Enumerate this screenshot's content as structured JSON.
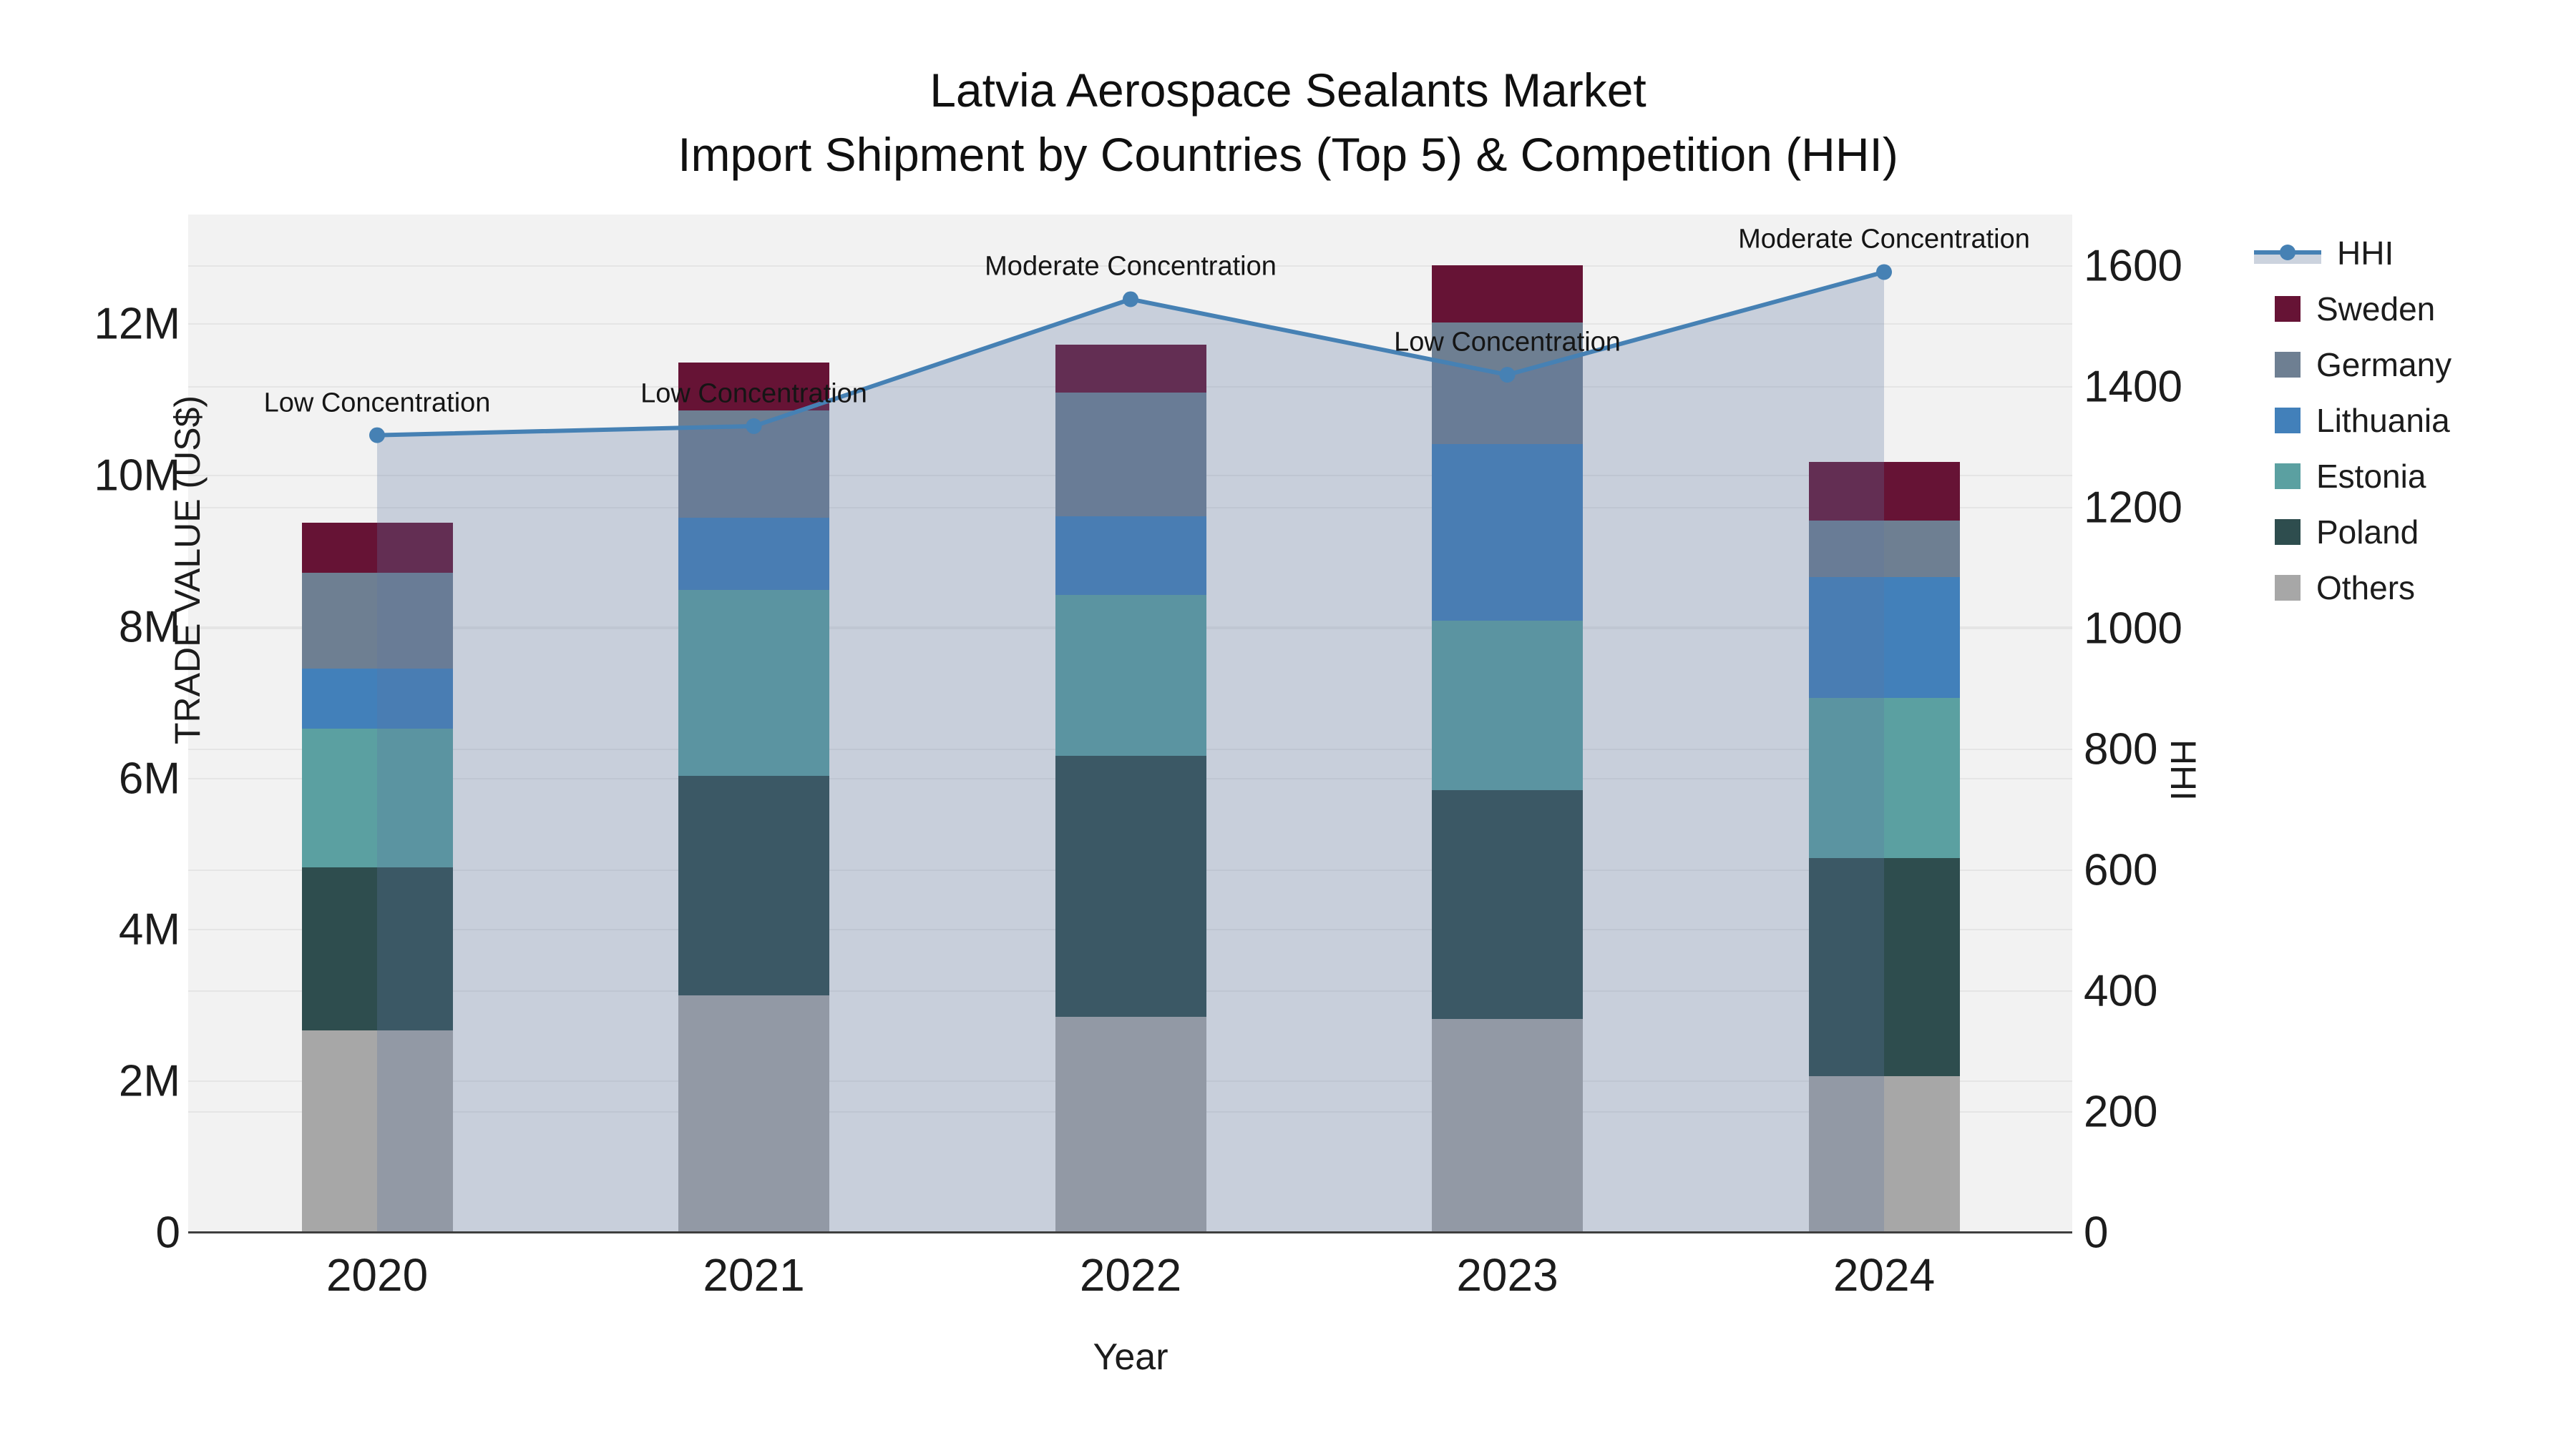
{
  "title": {
    "line1": "Latvia Aerospace Sealants Market",
    "line2": "Import Shipment by Countries (Top 5) & Competition (HHI)"
  },
  "axes": {
    "x": {
      "title": "Year"
    },
    "y_left": {
      "title": "TRADE VALUE (US$)"
    },
    "y_right": {
      "title": "HHI"
    }
  },
  "colors": {
    "plot_background": "#f2f2f2",
    "gridline": "#e5e5e5",
    "axis_line": "#3f3f3f",
    "hhi_line": "#4681b4",
    "hhi_area_fill": "rgba(92,117,160,0.28)",
    "hhi_band_swatch": "#ccd3de"
  },
  "legend_order": [
    "HHI",
    "Sweden",
    "Germany",
    "Lithuania",
    "Estonia",
    "Poland",
    "Others"
  ],
  "chart_data": {
    "type": "combo: stacked-bar (left axis) + line with markers (right axis)",
    "categories": [
      "2020",
      "2021",
      "2022",
      "2023",
      "2024"
    ],
    "bar_unit": "US$ millions",
    "series": [
      {
        "name": "Others",
        "color": "#a7a7a7",
        "values": [
          2.67,
          3.13,
          2.85,
          2.82,
          2.07
        ]
      },
      {
        "name": "Poland",
        "color": "#2e4d4e",
        "values": [
          2.15,
          2.9,
          3.45,
          3.02,
          2.88
        ]
      },
      {
        "name": "Estonia",
        "color": "#5ba0a1",
        "values": [
          1.84,
          2.46,
          2.12,
          2.24,
          2.11
        ]
      },
      {
        "name": "Lithuania",
        "color": "#4280ba",
        "values": [
          0.79,
          0.95,
          1.04,
          2.33,
          1.6
        ]
      },
      {
        "name": "Germany",
        "color": "#6e7f92",
        "values": [
          1.26,
          1.42,
          1.63,
          1.61,
          0.74
        ]
      },
      {
        "name": "Sweden",
        "color": "#661335",
        "values": [
          0.67,
          0.63,
          0.64,
          0.75,
          0.78
        ]
      }
    ],
    "bar_totals": [
      9.38,
      11.49,
      11.73,
      12.77,
      10.18
    ],
    "line": {
      "name": "HHI",
      "axis": "right",
      "color": "#4681b4",
      "values": [
        1320,
        1335,
        1545,
        1420,
        1590
      ]
    },
    "annotations": [
      {
        "category": "2020",
        "text": "Low Concentration"
      },
      {
        "category": "2021",
        "text": "Low Concentration"
      },
      {
        "category": "2022",
        "text": "Moderate Concentration"
      },
      {
        "category": "2023",
        "text": "Low Concentration"
      },
      {
        "category": "2024",
        "text": "Moderate Concentration"
      }
    ],
    "y_left_ticks": [
      "0",
      "2M",
      "4M",
      "6M",
      "8M",
      "10M",
      "12M"
    ],
    "y_left_tick_values": [
      0,
      2,
      4,
      6,
      8,
      10,
      12
    ],
    "y_right_ticks": [
      "0",
      "200",
      "400",
      "600",
      "800",
      "1000",
      "1200",
      "1400",
      "1600"
    ],
    "y_right_tick_values": [
      0,
      200,
      400,
      600,
      800,
      1000,
      1200,
      1400,
      1600
    ],
    "y_left_range_millions": [
      0,
      13.45
    ],
    "y_right_range": [
      0,
      1685
    ],
    "grid": true,
    "legend_position": "right"
  }
}
